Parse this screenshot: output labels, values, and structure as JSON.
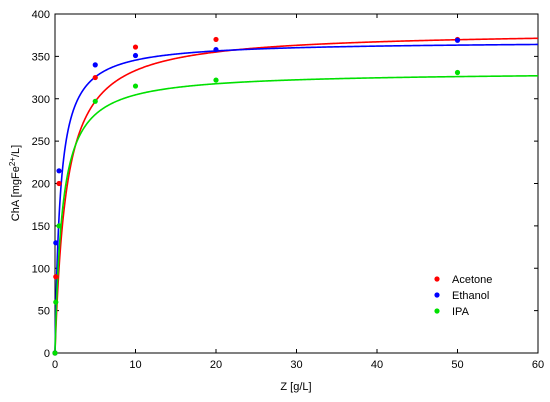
{
  "chart_data": {
    "type": "scatter",
    "title": "",
    "xlabel": "Z [g/L]",
    "ylabel_parts": {
      "main": "ChA [mgFe",
      "sup": "2+",
      "end": "/L]"
    },
    "xlim": [
      0,
      60
    ],
    "ylim": [
      0,
      400
    ],
    "xticks": [
      0,
      10,
      20,
      30,
      40,
      50,
      60
    ],
    "yticks": [
      0,
      50,
      100,
      150,
      200,
      250,
      300,
      350,
      400
    ],
    "grid": false,
    "legend_position": "bottom-right",
    "series": [
      {
        "name": "Acetone",
        "color": "#ff0000",
        "points": [
          [
            0,
            0
          ],
          [
            0.1,
            90
          ],
          [
            0.5,
            200
          ],
          [
            5,
            325
          ],
          [
            10,
            361
          ],
          [
            20,
            370
          ],
          [
            50,
            370
          ]
        ],
        "fit": {
          "qmax": 380,
          "k": 1.4
        }
      },
      {
        "name": "Ethanol",
        "color": "#0000ff",
        "points": [
          [
            0,
            0
          ],
          [
            0.1,
            130
          ],
          [
            0.5,
            215
          ],
          [
            5,
            340
          ],
          [
            10,
            351
          ],
          [
            20,
            358
          ],
          [
            50,
            369
          ]
        ],
        "fit": {
          "qmax": 368,
          "k": 0.65
        }
      },
      {
        "name": "IPA",
        "color": "#00e000",
        "points": [
          [
            0,
            0
          ],
          [
            0.1,
            60
          ],
          [
            0.5,
            150
          ],
          [
            5,
            297
          ],
          [
            10,
            315
          ],
          [
            20,
            322
          ],
          [
            50,
            331
          ]
        ],
        "fit": {
          "qmax": 332,
          "k": 0.9
        }
      }
    ]
  }
}
